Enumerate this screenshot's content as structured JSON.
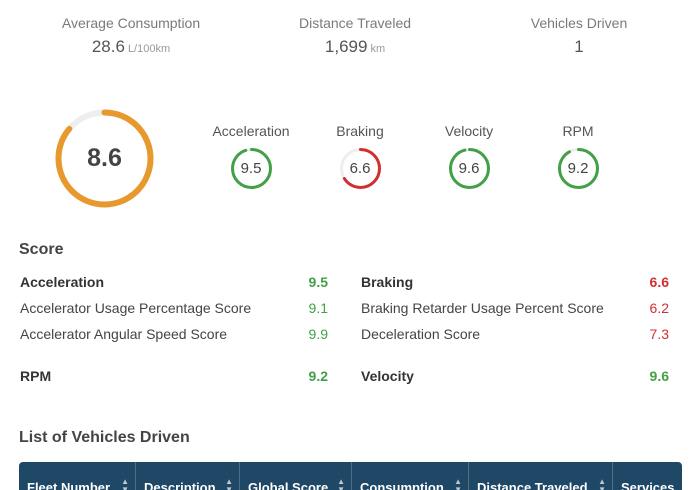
{
  "summary": {
    "consumption": {
      "label": "Average Consumption",
      "value": "28.6",
      "unit": "L/100km"
    },
    "distance": {
      "label": "Distance Traveled",
      "value": "1,699",
      "unit": "km"
    },
    "vehicles": {
      "label": "Vehicles Driven",
      "value": "1"
    }
  },
  "global_score": {
    "value": "8.6",
    "fraction": 0.86,
    "color": "#e8992e"
  },
  "mini_gauges": [
    {
      "label": "Acceleration",
      "value": "9.5",
      "fraction": 0.95,
      "color": "#43a047"
    },
    {
      "label": "Braking",
      "value": "6.6",
      "fraction": 0.66,
      "color": "#d32f2f"
    },
    {
      "label": "Velocity",
      "value": "9.6",
      "fraction": 0.96,
      "color": "#43a047"
    },
    {
      "label": "RPM",
      "value": "9.2",
      "fraction": 0.92,
      "color": "#43a047"
    }
  ],
  "score": {
    "title": "Score",
    "left": [
      {
        "label": "Acceleration",
        "value": "9.5"
      },
      {
        "label": "Accelerator Usage Percentage Score",
        "value": "9.1"
      },
      {
        "label": "Accelerator Angular Speed Score",
        "value": "9.9"
      },
      {
        "label": "RPM",
        "value": "9.2"
      }
    ],
    "right": [
      {
        "label": "Braking",
        "value": "6.6"
      },
      {
        "label": "Braking Retarder Usage Percent Score",
        "value": "6.2"
      },
      {
        "label": "Deceleration Score",
        "value": "7.3"
      },
      {
        "label": "Velocity",
        "value": "9.6"
      }
    ]
  },
  "vehicles_list": {
    "title": "List of Vehicles Driven",
    "columns": [
      "Fleet Number",
      "Description",
      "Global Score",
      "Consumption",
      "Distance Traveled",
      "Services"
    ]
  },
  "colors": {
    "good": "#43a047",
    "bad": "#d32f2f",
    "warn": "#e8992e",
    "table_header": "#1f4766"
  }
}
